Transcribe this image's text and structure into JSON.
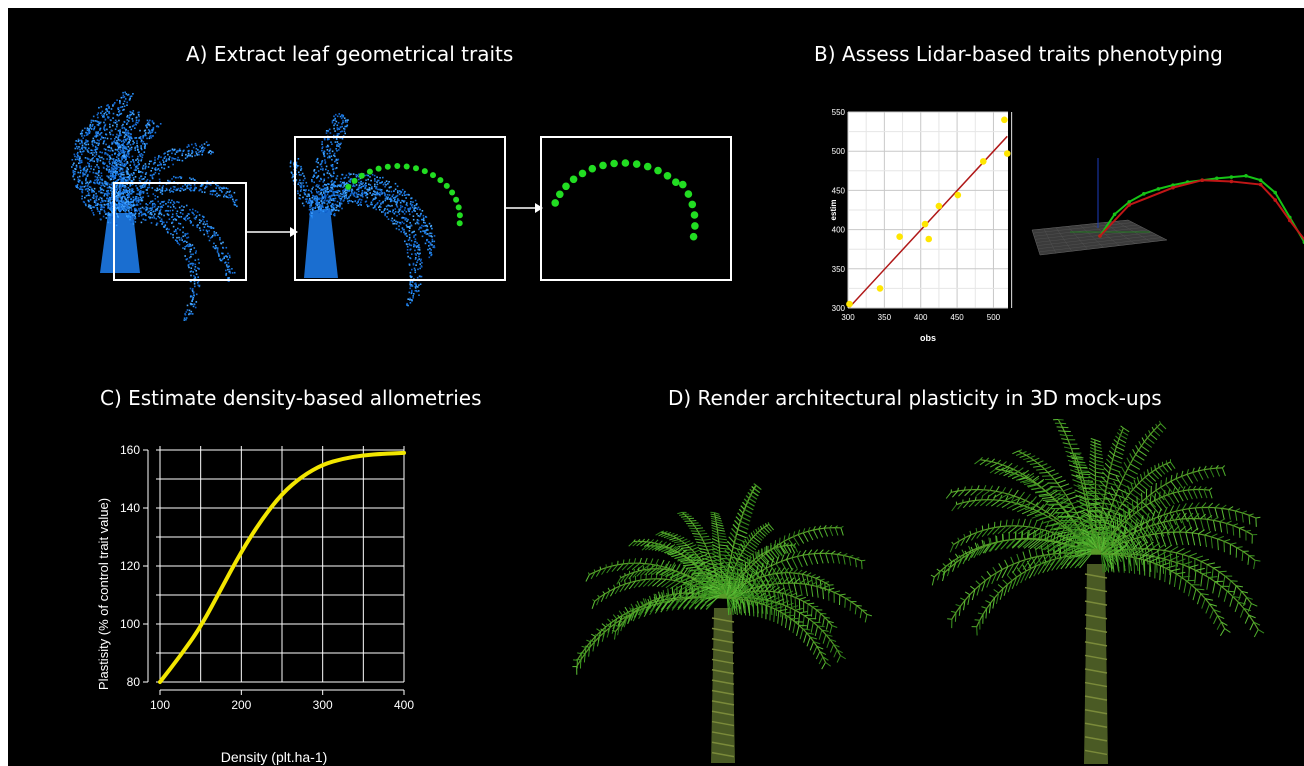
{
  "panels": {
    "a": {
      "title": "A) Extract leaf geometrical traits"
    },
    "b": {
      "title": "B) Assess Lidar-based traits phenotyping"
    },
    "c": {
      "title": "C) Estimate density-based allometries"
    },
    "d": {
      "title": "D) Render architectural plasticity in 3D mock-ups"
    }
  },
  "colors": {
    "background": "#000000",
    "pointcloud": "#1e7fe6",
    "leaf_points": "#22dd22",
    "scatter_points": "#ffe600",
    "regression_line": "#b01818",
    "curve": "#f2e600",
    "palm_green": "#3f9a22"
  },
  "icons": [
    "arrow-right-icon",
    "palm-pointcloud",
    "palm-3d-mockup"
  ],
  "chart_data": [
    {
      "id": "panel-b-scatter",
      "type": "scatter",
      "xlabel": "obs",
      "ylabel": "estim",
      "xlim": [
        300,
        520
      ],
      "ylim": [
        300,
        550
      ],
      "xticks": [
        300,
        350,
        400,
        450,
        500
      ],
      "yticks": [
        300,
        350,
        400,
        450,
        500,
        550
      ],
      "grid": true,
      "series": [
        {
          "x": [
            302,
            344,
            371,
            406,
            411,
            425,
            451,
            486,
            515,
            519
          ],
          "y": [
            305,
            325,
            391,
            407,
            388,
            430,
            444,
            487,
            540,
            497
          ]
        }
      ],
      "regression": {
        "x": [
          302,
          519
        ],
        "y": [
          301,
          519
        ]
      }
    },
    {
      "id": "panel-c-curve",
      "type": "line",
      "xlabel": "Density (plt.ha-1)",
      "ylabel": "Plastisity (% of control trait value)",
      "xlim": [
        100,
        400
      ],
      "ylim": [
        80,
        160
      ],
      "xticks": [
        100,
        200,
        300,
        400
      ],
      "yticks": [
        80,
        100,
        120,
        140,
        160
      ],
      "grid": true,
      "series": [
        {
          "x": [
            100,
            125,
            150,
            175,
            200,
            225,
            250,
            275,
            300,
            325,
            350,
            375,
            400
          ],
          "y": [
            80,
            89,
            99,
            112,
            125,
            136,
            145,
            151,
            155,
            157,
            158.2,
            158.7,
            159
          ]
        }
      ]
    },
    {
      "id": "panel-b-leaf-profile",
      "type": "line",
      "series": [
        {
          "x": [
            0,
            1,
            2,
            3,
            4,
            5,
            6,
            7,
            8,
            9,
            10,
            11,
            12,
            13,
            14
          ],
          "y": [
            0,
            0.35,
            0.55,
            0.68,
            0.76,
            0.82,
            0.87,
            0.9,
            0.93,
            0.95,
            0.97,
            0.9,
            0.7,
            0.3,
            -0.1
          ]
        },
        {
          "x": [
            0,
            2,
            5,
            7,
            9,
            11,
            12,
            13,
            14.3
          ],
          "y": [
            0,
            0.5,
            0.78,
            0.9,
            0.88,
            0.83,
            0.58,
            0.25,
            -0.15
          ]
        }
      ]
    }
  ]
}
